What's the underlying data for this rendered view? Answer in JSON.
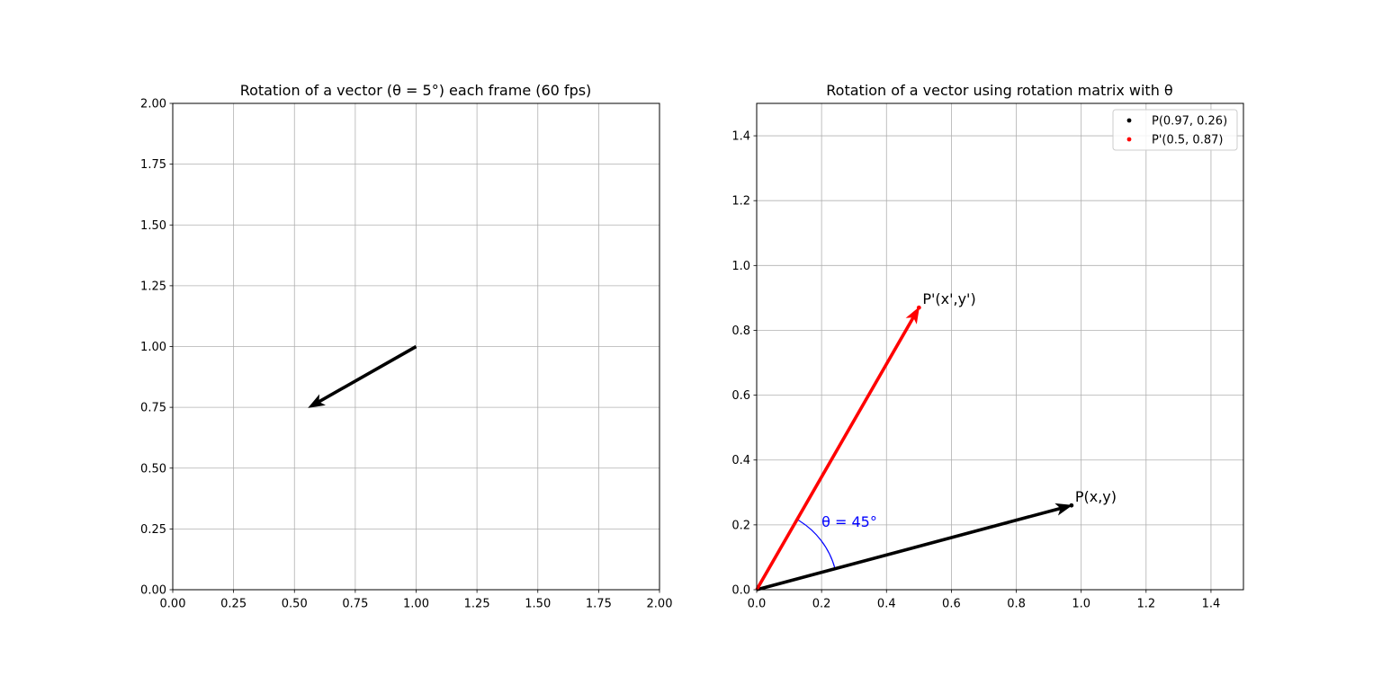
{
  "chart_data": [
    {
      "type": "vector",
      "title": "Rotation of a vector (θ = 5°) each frame (60 fps)",
      "xlim": [
        0,
        2
      ],
      "ylim": [
        0,
        2
      ],
      "xticks": [
        "0.00",
        "0.25",
        "0.50",
        "0.75",
        "1.00",
        "1.25",
        "1.50",
        "1.75",
        "2.00"
      ],
      "yticks": [
        "0.00",
        "0.25",
        "0.50",
        "0.75",
        "1.00",
        "1.25",
        "1.50",
        "1.75",
        "2.00"
      ],
      "grid": true,
      "vectors": [
        {
          "from": [
            1.0,
            1.0
          ],
          "to": [
            0.56,
            0.75
          ],
          "color": "#000000"
        }
      ]
    },
    {
      "type": "vector",
      "title": "Rotation of a vector using rotation matrix with θ",
      "xlim": [
        0,
        1.5
      ],
      "ylim": [
        0,
        1.5
      ],
      "xticks": [
        "0.0",
        "0.2",
        "0.4",
        "0.6",
        "0.8",
        "1.0",
        "1.2",
        "1.4"
      ],
      "yticks": [
        "0.0",
        "0.2",
        "0.4",
        "0.6",
        "0.8",
        "1.0",
        "1.2",
        "1.4"
      ],
      "grid": true,
      "legend_position": "top-right",
      "vectors": [
        {
          "from": [
            0,
            0
          ],
          "to": [
            0.97,
            0.26
          ],
          "color": "#000000",
          "label": "P(x,y)"
        },
        {
          "from": [
            0,
            0
          ],
          "to": [
            0.5,
            0.87
          ],
          "color": "#ff0000",
          "label": "P'(x',y')"
        }
      ],
      "points": [
        {
          "x": 0.97,
          "y": 0.26,
          "color": "#000000",
          "legend": "P(0.97, 0.26)"
        },
        {
          "x": 0.5,
          "y": 0.87,
          "color": "#ff0000",
          "legend": "P'(0.5, 0.87)"
        }
      ],
      "angle_arc": {
        "label": "θ = 45°",
        "radius": 0.25,
        "start_deg": 15,
        "end_deg": 60,
        "color": "#0000ff"
      }
    }
  ]
}
